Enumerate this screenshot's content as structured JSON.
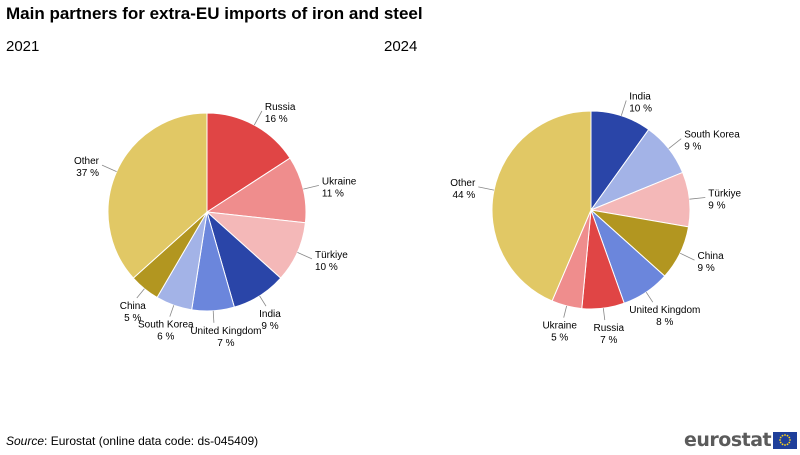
{
  "title": "Main partners for extra-EU imports of iron and steel",
  "source": {
    "label": "Source",
    "text": ": Eurostat (online data code: ds-045409)"
  },
  "brand": {
    "name": "eurostat",
    "flag_icon": "eu-flag-icon"
  },
  "colors": {
    "Russia": "#e04545",
    "Ukraine": "#ef8d8d",
    "Türkiye": "#f4b8b8",
    "India": "#2a45a8",
    "United Kingdom": "#6b86dc",
    "South Korea": "#a3b3e7",
    "China": "#b29620",
    "Other": "#e1c865"
  },
  "chart_data": [
    {
      "type": "pie",
      "title": "2021",
      "slices": [
        {
          "label": "Russia",
          "value": 16,
          "value_label": "16 %"
        },
        {
          "label": "Ukraine",
          "value": 11,
          "value_label": "11 %"
        },
        {
          "label": "Türkiye",
          "value": 10,
          "value_label": "10 %"
        },
        {
          "label": "India",
          "value": 9,
          "value_label": "9 %"
        },
        {
          "label": "United Kingdom",
          "value": 7,
          "value_label": "7 %"
        },
        {
          "label": "South Korea",
          "value": 6,
          "value_label": "6 %"
        },
        {
          "label": "China",
          "value": 5,
          "value_label": "5 %"
        },
        {
          "label": "Other",
          "value": 37,
          "value_label": "37 %"
        }
      ]
    },
    {
      "type": "pie",
      "title": "2024",
      "slices": [
        {
          "label": "India",
          "value": 10,
          "value_label": "10 %"
        },
        {
          "label": "South Korea",
          "value": 9,
          "value_label": "9 %"
        },
        {
          "label": "Türkiye",
          "value": 9,
          "value_label": "9 %"
        },
        {
          "label": "China",
          "value": 9,
          "value_label": "9 %"
        },
        {
          "label": "United Kingdom",
          "value": 8,
          "value_label": "8 %"
        },
        {
          "label": "Russia",
          "value": 7,
          "value_label": "7 %"
        },
        {
          "label": "Ukraine",
          "value": 5,
          "value_label": "5 %"
        },
        {
          "label": "Other",
          "value": 44,
          "value_label": "44 %"
        }
      ]
    }
  ]
}
